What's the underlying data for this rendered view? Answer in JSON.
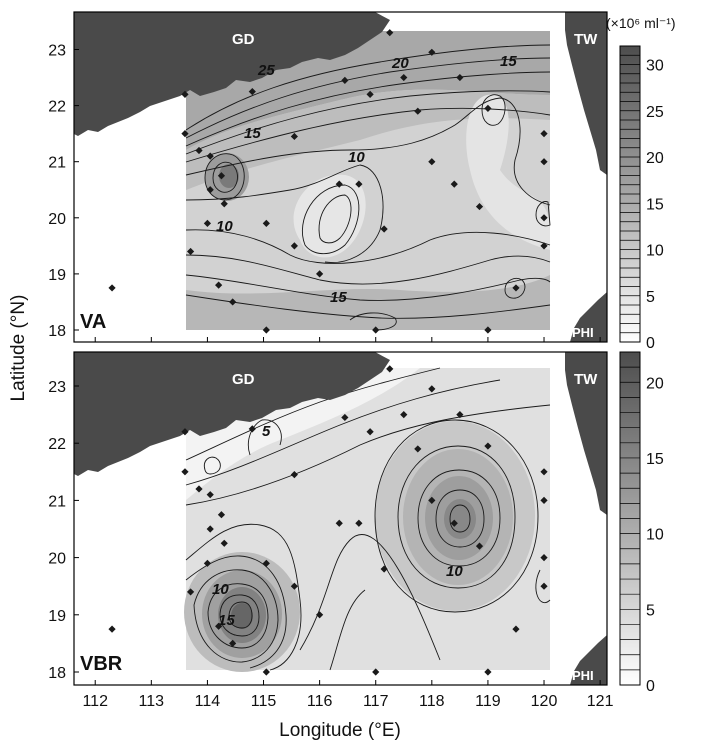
{
  "figure": {
    "x_axis_title": "Longitude (°E)",
    "y_axis_title": "Latitude (°N)",
    "units": "(×10⁶ ml⁻¹)",
    "x_ticks": [
      "112",
      "113",
      "114",
      "115",
      "116",
      "117",
      "118",
      "119",
      "120",
      "121"
    ],
    "y_ticks": [
      "23",
      "22",
      "21",
      "20",
      "19",
      "18"
    ],
    "region_labels": {
      "gd": "GD",
      "tw": "TW",
      "phi": "PHI"
    }
  },
  "panels": [
    {
      "label": "VA",
      "contour_labels": [
        "25",
        "20",
        "15",
        "15",
        "10",
        "10",
        "15"
      ],
      "colorbar_ticks": [
        "30",
        "25",
        "20",
        "15",
        "10",
        "5",
        "0"
      ]
    },
    {
      "label": "VBR",
      "contour_labels": [
        "5",
        "10",
        "10",
        "15"
      ],
      "colorbar_ticks": [
        "20",
        "15",
        "10",
        "5",
        "0"
      ]
    }
  ],
  "colors": {
    "land": "#4a4a4a",
    "frame": "#000000",
    "station_marker": "#1a1a1a"
  },
  "stations_lonlat": [
    [
      112.3,
      18.75
    ],
    [
      113.6,
      22.2
    ],
    [
      113.85,
      21.2
    ],
    [
      113.6,
      21.5
    ],
    [
      113.7,
      19.4
    ],
    [
      114.05,
      21.1
    ],
    [
      114.25,
      20.75
    ],
    [
      114.3,
      20.25
    ],
    [
      114.05,
      20.5
    ],
    [
      114.0,
      19.9
    ],
    [
      114.2,
      18.8
    ],
    [
      114.45,
      18.5
    ],
    [
      114.8,
      22.25
    ],
    [
      115.05,
      18.0
    ],
    [
      115.05,
      19.9
    ],
    [
      115.55,
      21.45
    ],
    [
      115.55,
      19.5
    ],
    [
      116.0,
      19.0
    ],
    [
      116.45,
      22.45
    ],
    [
      116.35,
      20.6
    ],
    [
      116.7,
      20.6
    ],
    [
      116.9,
      22.2
    ],
    [
      117.0,
      18.0
    ],
    [
      117.15,
      19.8
    ],
    [
      117.25,
      23.3
    ],
    [
      117.5,
      22.5
    ],
    [
      117.75,
      21.9
    ],
    [
      118.0,
      22.95
    ],
    [
      118.0,
      21.0
    ],
    [
      118.4,
      20.6
    ],
    [
      118.5,
      22.5
    ],
    [
      118.85,
      20.2
    ],
    [
      119.0,
      21.95
    ],
    [
      119.0,
      18.0
    ],
    [
      119.5,
      18.75
    ],
    [
      120.0,
      21.5
    ],
    [
      120.0,
      21.0
    ],
    [
      120.0,
      20.0
    ],
    [
      120.0,
      19.5
    ]
  ]
}
